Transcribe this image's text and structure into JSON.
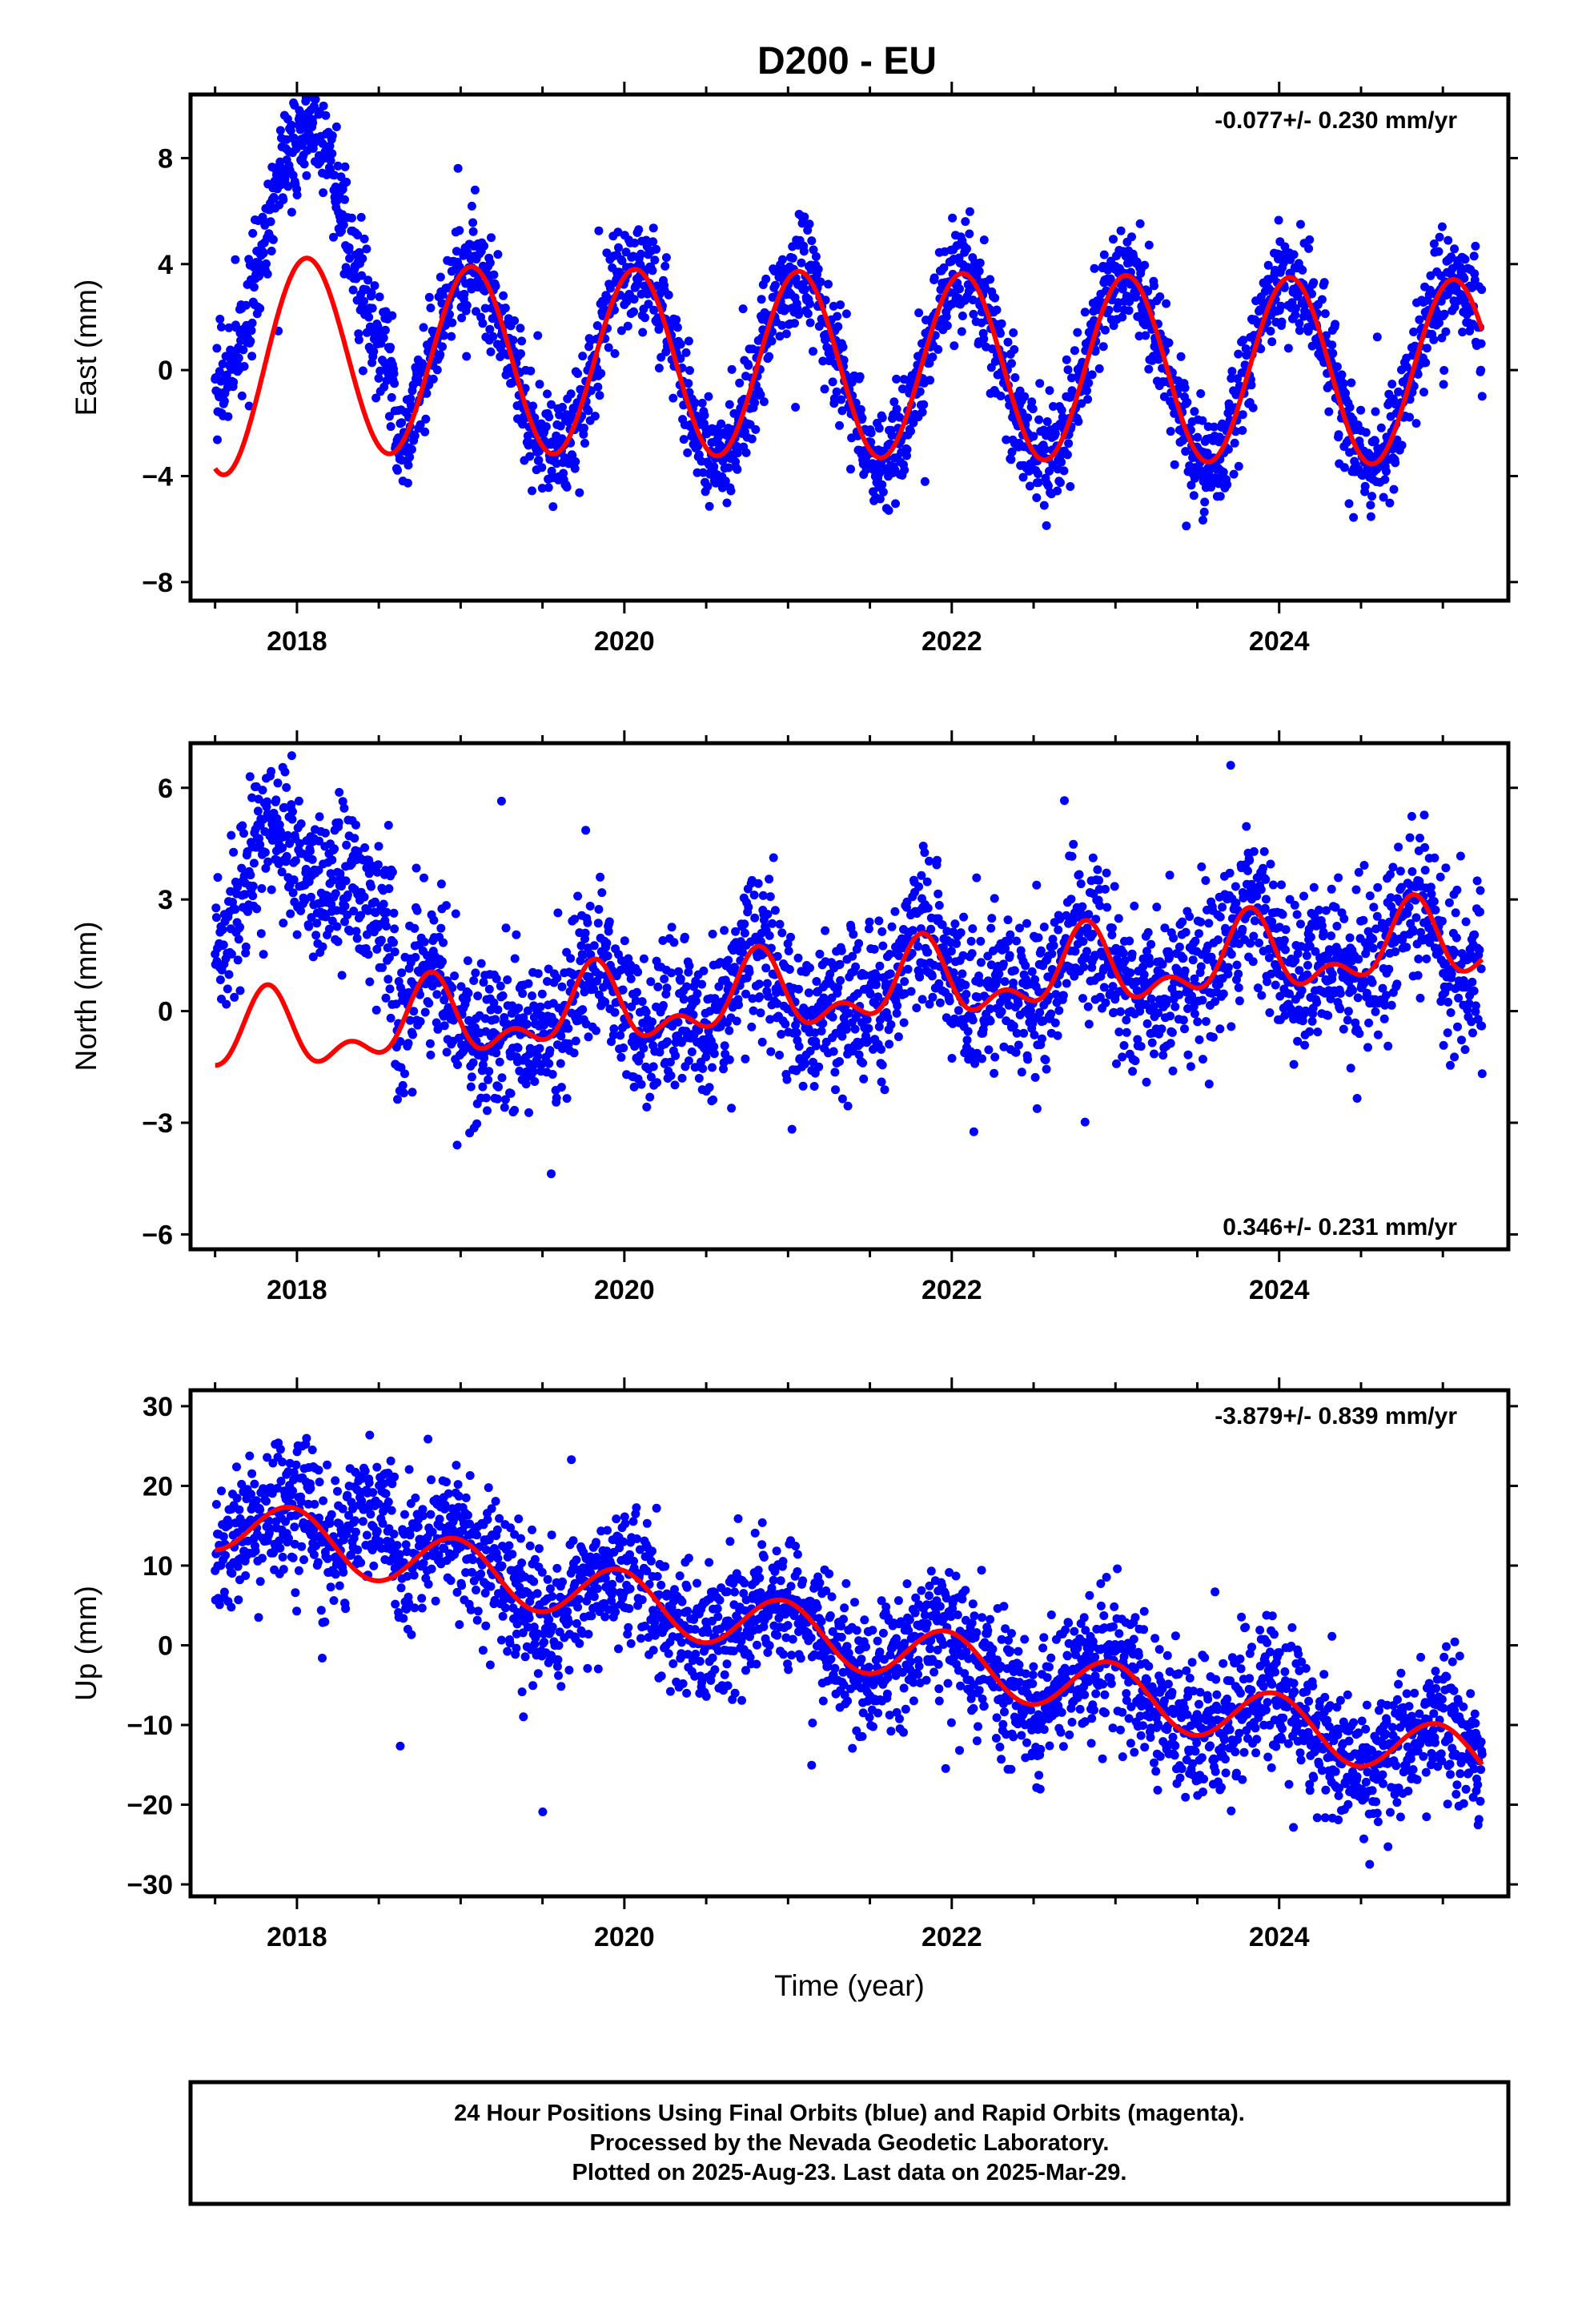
{
  "title": "D200 - EU",
  "colors": {
    "points": "#0000ff",
    "model": "#ff0000",
    "frame": "#000000"
  },
  "chart_data": [
    {
      "type": "scatter",
      "component": "east",
      "ylabel": "East (mm)",
      "xlabel": "",
      "rate_text": "-0.077+/- 0.230 mm/yr",
      "rate_position": "top-right",
      "xlim": [
        2017.35,
        2025.4
      ],
      "ylim": [
        -8.7,
        10.4
      ],
      "yticks": [
        -8,
        -4,
        0,
        4,
        8
      ],
      "xticks": [
        2018,
        2020,
        2022,
        2024
      ],
      "x_minor_ticks": [
        2017.5,
        2018.5,
        2019,
        2019.5,
        2020.5,
        2021,
        2021.5,
        2022.5,
        2023,
        2023.5,
        2024.5,
        2025
      ],
      "model": {
        "offset": 0.5,
        "trend": -0.077,
        "annual_amp": 3.5,
        "annual_phase": 4.3,
        "semi_amp": 0.0,
        "semi_phase": 0.0,
        "extra": "decay"
      },
      "observations": {
        "first": 2017.5,
        "last": 2025.24,
        "scatter": 1.0,
        "early_anomaly": {
          "start": 2017.5,
          "end": 2018.6,
          "shift": 4.5
        }
      }
    },
    {
      "type": "scatter",
      "component": "north",
      "ylabel": "North (mm)",
      "xlabel": "",
      "rate_text": "0.346+/- 0.231 mm/yr",
      "rate_position": "bottom-right",
      "xlim": [
        2017.35,
        2025.4
      ],
      "ylim": [
        -6.4,
        7.2
      ],
      "yticks": [
        -6,
        -3,
        0,
        3,
        6
      ],
      "xticks": [
        2018,
        2020,
        2022,
        2024
      ],
      "x_minor_ticks": [
        2017.5,
        2018.5,
        2019,
        2019.5,
        2020.5,
        2021,
        2021.5,
        2022.5,
        2023,
        2023.5,
        2024.5,
        2025
      ],
      "model": {
        "offset": -0.8,
        "trend": 0.346,
        "annual_amp": 0.85,
        "annual_phase": 5.9,
        "semi_amp": 0.55,
        "semi_phase": 3.8,
        "extra": "none"
      },
      "observations": {
        "first": 2017.5,
        "last": 2025.24,
        "scatter": 1.05,
        "early_anomaly": {
          "start": 2017.5,
          "end": 2018.6,
          "shift": 4.2
        }
      }
    },
    {
      "type": "scatter",
      "component": "up",
      "ylabel": "Up (mm)",
      "xlabel": "Time (year)",
      "rate_text": "-3.879+/- 0.839 mm/yr",
      "rate_position": "top-right",
      "xlim": [
        2017.35,
        2025.4
      ],
      "ylim": [
        -31.5,
        32.0
      ],
      "yticks": [
        -30,
        -20,
        -10,
        0,
        10,
        20,
        30
      ],
      "xticks": [
        2018,
        2020,
        2022,
        2024
      ],
      "x_minor_ticks": [
        2017.5,
        2018.5,
        2019,
        2019.5,
        2020.5,
        2021,
        2021.5,
        2022.5,
        2023,
        2023.5,
        2024.5,
        2025
      ],
      "model": {
        "offset": 15.5,
        "trend": -3.879,
        "annual_amp": 3.6,
        "annual_phase": 4.9,
        "semi_amp": 0.0,
        "semi_phase": 0.0,
        "extra": "none"
      },
      "observations": {
        "first": 2017.5,
        "last": 2025.24,
        "scatter": 4.2,
        "early_anomaly": {
          "start": 2018.3,
          "end": 2018.6,
          "shift": 8.0
        }
      }
    }
  ],
  "footer": {
    "line1": "24 Hour Positions Using Final Orbits (blue) and Rapid Orbits (magenta).",
    "line2": "Processed by the Nevada Geodetic Laboratory.",
    "line3": "Plotted on 2025-Aug-23. Last data on 2025-Mar-29."
  }
}
